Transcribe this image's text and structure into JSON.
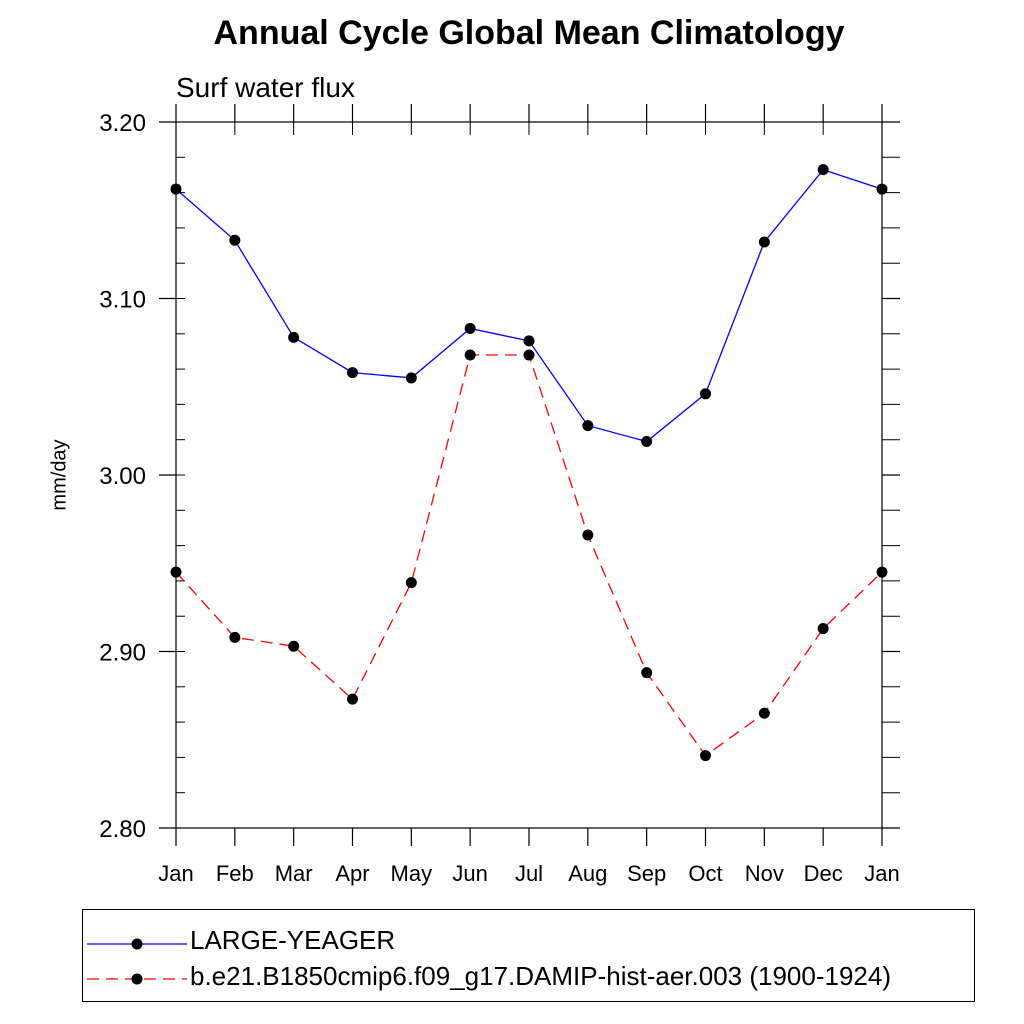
{
  "chart_data": {
    "type": "line",
    "title": "Annual Cycle Global Mean Climatology",
    "subtitle": "Surf water flux",
    "xlabel": "",
    "ylabel": "mm/day",
    "categories": [
      "Jan",
      "Feb",
      "Mar",
      "Apr",
      "May",
      "Jun",
      "Jul",
      "Aug",
      "Sep",
      "Oct",
      "Nov",
      "Dec",
      "Jan"
    ],
    "ylim": [
      2.8,
      3.2
    ],
    "yticks": [
      "3.20",
      "3.10",
      "3.00",
      "2.90",
      "2.80"
    ],
    "ytick_values": [
      3.2,
      3.1,
      3.0,
      2.9,
      2.8
    ],
    "y_minor_step": 0.02,
    "grid": false,
    "legend_position": "bottom",
    "series": [
      {
        "name": "LARGE-YEAGER",
        "color": "#0000ff",
        "dash": "solid",
        "marker": "filled-circle",
        "values": [
          3.162,
          3.133,
          3.078,
          3.058,
          3.055,
          3.083,
          3.076,
          3.028,
          3.019,
          3.046,
          3.132,
          3.173,
          3.162
        ]
      },
      {
        "name": "b.e21.B1850cmip6.f09_g17.DAMIP-hist-aer.003 (1900-1924)",
        "color": "#ff0000",
        "dash": "dashed",
        "marker": "filled-circle",
        "values": [
          2.945,
          2.908,
          2.903,
          2.873,
          2.939,
          3.068,
          3.068,
          2.966,
          2.888,
          2.841,
          2.865,
          2.913,
          2.945
        ]
      }
    ]
  }
}
